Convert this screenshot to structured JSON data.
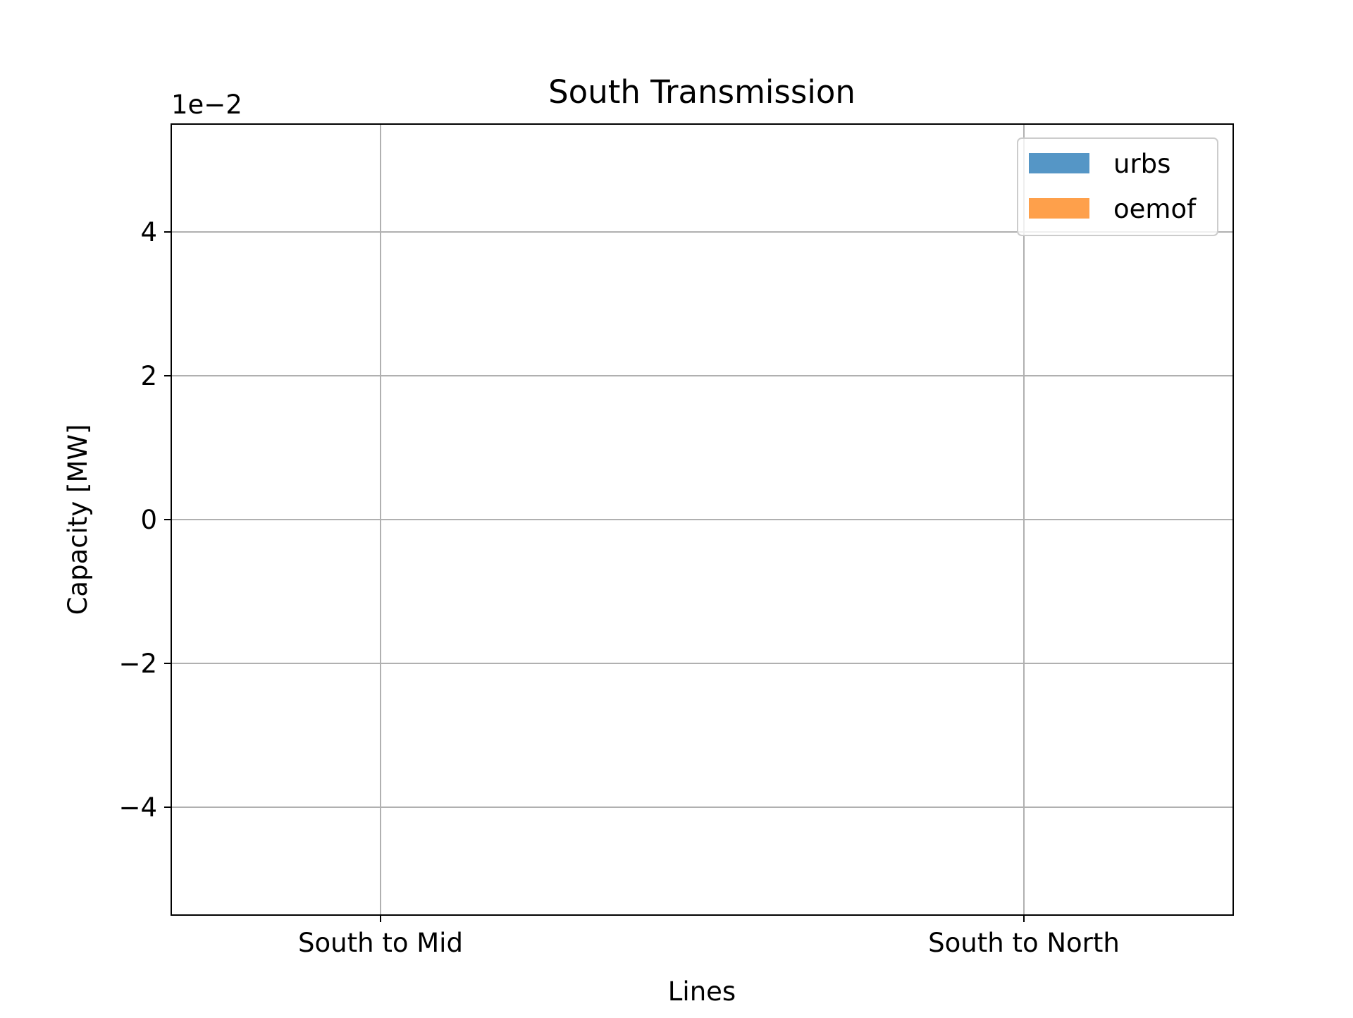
{
  "chart_data": {
    "type": "bar",
    "title": "South Transmission",
    "xlabel": "Lines",
    "ylabel": "Capacity [MW]",
    "offset_label": "1e−2",
    "categories": [
      "South to Mid",
      "South to North"
    ],
    "series": [
      {
        "name": "urbs",
        "values": [
          0,
          0
        ],
        "color": "#5596c6"
      },
      {
        "name": "oemof",
        "values": [
          0,
          0
        ],
        "color": "#fea04b"
      }
    ],
    "ylim": [
      -5.5,
      5.5
    ],
    "yticks": [
      -4,
      -2,
      0,
      2,
      4
    ],
    "ytick_labels": [
      "−4",
      "−2",
      "0",
      "2",
      "4"
    ],
    "grid": true,
    "legend_position": "top-right"
  }
}
